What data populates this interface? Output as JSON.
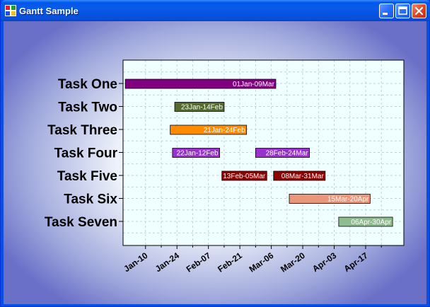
{
  "window": {
    "title": "Gantt Sample",
    "app_icon": "windows-app-icon",
    "buttons": [
      "minimize-icon",
      "maximize-icon",
      "close-icon"
    ]
  },
  "colors": {
    "plot_background": "#f0ffff",
    "grid": "#c7d0d2"
  },
  "chart_data": {
    "type": "bar",
    "orientation": "horizontal-gantt",
    "categories": [
      "Task One",
      "Task Two",
      "Task Three",
      "Task Four",
      "Task Five",
      "Task Six",
      "Task Seven"
    ],
    "x_ticks": [
      "Jan-10",
      "Jan-24",
      "Feb-07",
      "Feb-21",
      "Mar-06",
      "Mar-20",
      "Apr-03",
      "Apr-17"
    ],
    "xlim": [
      "2000-12-31",
      "2001-05-05"
    ],
    "grid": true,
    "legend": "none",
    "bars": [
      {
        "task": "Task One",
        "start": "2001-01-01",
        "end": "2001-03-09",
        "label": "01Jan-09Mar",
        "color": "#800080"
      },
      {
        "task": "Task Two",
        "start": "2001-01-23",
        "end": "2001-02-14",
        "label": "23Jan-14Feb",
        "color": "#556b2f"
      },
      {
        "task": "Task Three",
        "start": "2001-01-21",
        "end": "2001-02-24",
        "label": "21Jan-24Feb",
        "color": "#ff8c00"
      },
      {
        "task": "Task Four",
        "start": "2001-01-22",
        "end": "2001-02-12",
        "label": "22Jan-12Feb",
        "color": "#9932cc"
      },
      {
        "task": "Task Four",
        "start": "2001-02-28",
        "end": "2001-03-24",
        "label": "28Feb-24Mar",
        "color": "#9932cc"
      },
      {
        "task": "Task Five",
        "start": "2001-02-13",
        "end": "2001-03-05",
        "label": "13Feb-05Mar",
        "color": "#8b0000"
      },
      {
        "task": "Task Five",
        "start": "2001-03-08",
        "end": "2001-03-31",
        "label": "08Mar-31Mar",
        "color": "#8b0000"
      },
      {
        "task": "Task Six",
        "start": "2001-03-15",
        "end": "2001-04-20",
        "label": "15Mar-20Apr",
        "color": "#e9967a"
      },
      {
        "task": "Task Seven",
        "start": "2001-04-06",
        "end": "2001-04-30",
        "label": "06Apr-30Apr",
        "color": "#8fbc8f"
      }
    ]
  }
}
